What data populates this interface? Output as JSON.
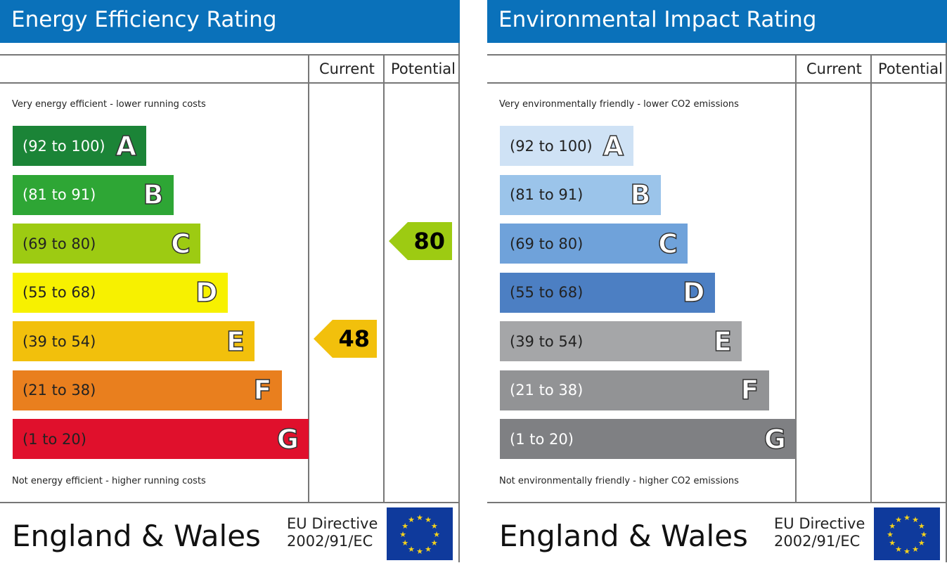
{
  "chart_data": [
    {
      "type": "bar",
      "title": "Energy Efficiency Rating",
      "columns": [
        "Current",
        "Potential"
      ],
      "top_note": "Very energy efficient - lower running costs",
      "bottom_note": "Not energy efficient - higher running costs",
      "bands": [
        {
          "range": "(92 to 100)",
          "letter": "A",
          "color": "#1b8437",
          "text": "#fff"
        },
        {
          "range": "(81 to 91)",
          "letter": "B",
          "color": "#2ea635",
          "text": "#fff"
        },
        {
          "range": "(69 to 80)",
          "letter": "C",
          "color": "#9dcb12",
          "text": "#222"
        },
        {
          "range": "(55 to 68)",
          "letter": "D",
          "color": "#f7f100",
          "text": "#222"
        },
        {
          "range": "(39 to 54)",
          "letter": "E",
          "color": "#f2c00c",
          "text": "#222"
        },
        {
          "range": "(21 to 38)",
          "letter": "F",
          "color": "#e97f1e",
          "text": "#222"
        },
        {
          "range": "(1 to 20)",
          "letter": "G",
          "color": "#e0102c",
          "text": "#222"
        }
      ],
      "current": {
        "value": "48",
        "band": 4,
        "color": "#f2c00c"
      },
      "potential": {
        "value": "80",
        "band": 2,
        "color": "#9dcb12"
      },
      "footer": {
        "region": "England & Wales",
        "directive1": "EU Directive",
        "directive2": "2002/91/EC"
      }
    },
    {
      "type": "bar",
      "title": "Environmental Impact Rating",
      "columns": [
        "Current",
        "Potential"
      ],
      "top_note": "Very environmentally friendly - lower CO2 emissions",
      "bottom_note": "Not environmentally friendly - higher CO2 emissions",
      "bands": [
        {
          "range": "(92 to 100)",
          "letter": "A",
          "color": "#cfe2f5",
          "text": "#222"
        },
        {
          "range": "(81 to 91)",
          "letter": "B",
          "color": "#9bc4ea",
          "text": "#222"
        },
        {
          "range": "(69 to 80)",
          "letter": "C",
          "color": "#6fa2da",
          "text": "#222"
        },
        {
          "range": "(55 to 68)",
          "letter": "D",
          "color": "#4c7fc3",
          "text": "#222"
        },
        {
          "range": "(39 to 54)",
          "letter": "E",
          "color": "#a5a6a8",
          "text": "#222"
        },
        {
          "range": "(21 to 38)",
          "letter": "F",
          "color": "#929395",
          "text": "#fff"
        },
        {
          "range": "(1 to 20)",
          "letter": "G",
          "color": "#7f8083",
          "text": "#fff"
        }
      ],
      "footer": {
        "region": "England & Wales",
        "directive1": "EU Directive",
        "directive2": "2002/91/EC"
      }
    }
  ]
}
